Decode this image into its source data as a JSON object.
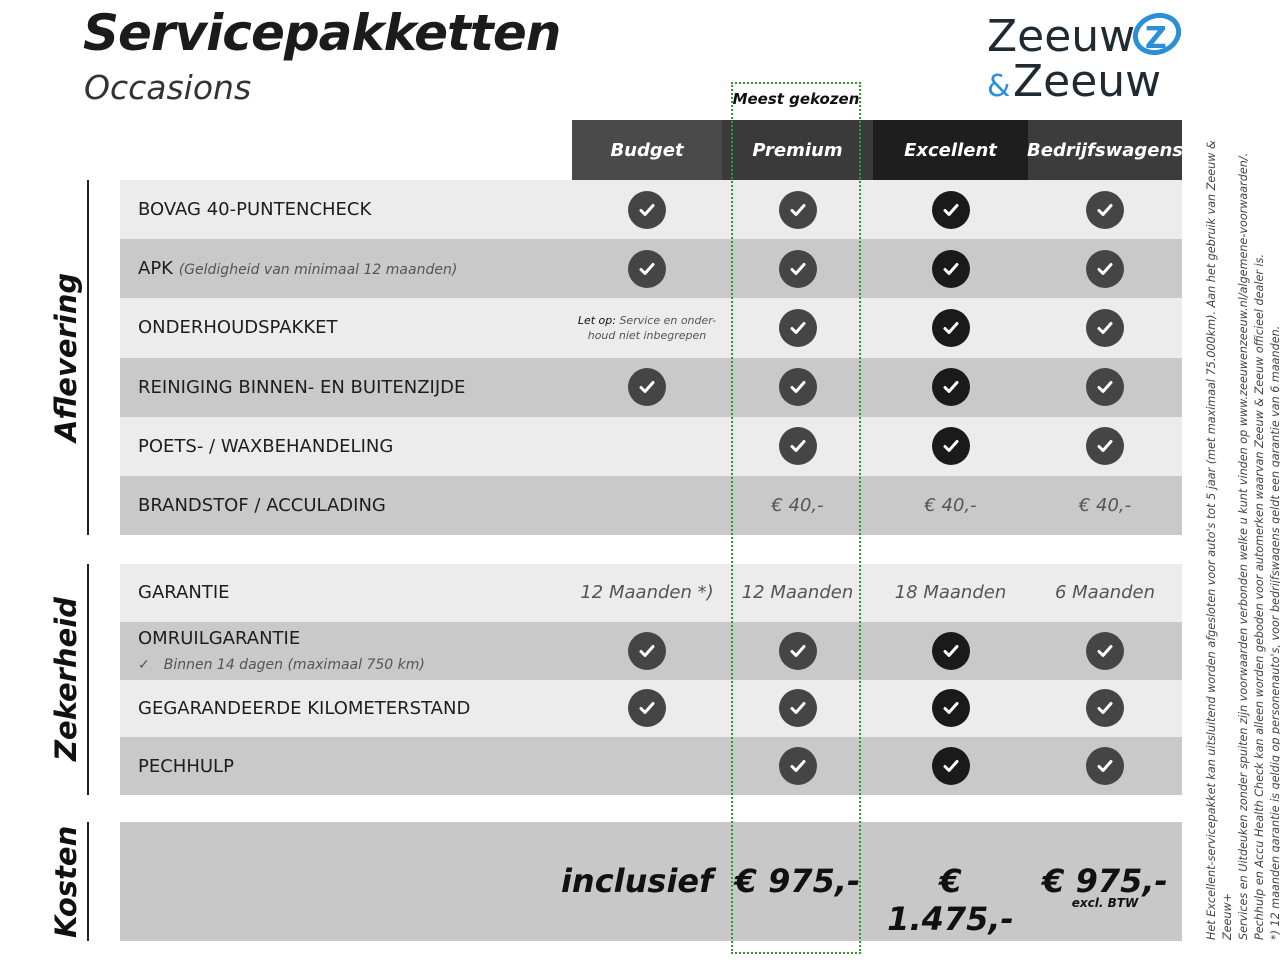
{
  "header": {
    "title": "Servicepakketten",
    "subtitle": "Occasions",
    "logo_text": "Zeeuw & Zeeuw",
    "logo_colors": {
      "text": "#1f2a33",
      "accent": "#2a8fd6"
    }
  },
  "badge": {
    "most_chosen": "Meest gekozen",
    "highlight_color": "#2aa02a"
  },
  "columns": [
    {
      "label": "Budget",
      "color": "#4a4a4a"
    },
    {
      "label": "Premium",
      "color": "#3a3a3a"
    },
    {
      "label": "Excellent",
      "color": "#1e1e1e"
    },
    {
      "label": "Bedrijfswagens",
      "color": "#3c3c3c"
    }
  ],
  "sections": [
    {
      "label": "Aflevering",
      "rows": [
        {
          "label": "BOVAG 40-PUNTENCHECK",
          "cells": [
            "check",
            "check",
            "check",
            "check"
          ]
        },
        {
          "label": "APK",
          "sub": "(Geldigheid van minimaal 12 maanden)",
          "cells": [
            "check",
            "check",
            "check",
            "check"
          ]
        },
        {
          "label": "ONDERHOUDSPAKKET",
          "cells": [
            "note",
            "check",
            "check",
            "check"
          ]
        },
        {
          "label": "REINIGING BINNEN- EN BUITENZIJDE",
          "cells": [
            "check",
            "check",
            "check",
            "check"
          ]
        },
        {
          "label": "POETS- / WAXBEHANDELING",
          "cells": [
            "",
            "check",
            "check",
            "check"
          ]
        },
        {
          "label": "BRANDSTOF / ACCULADING",
          "cells": [
            "",
            "€ 40,-",
            "€ 40,-",
            "€ 40,-"
          ]
        }
      ]
    },
    {
      "label": "Zekerheid",
      "rows": [
        {
          "label": "GARANTIE",
          "cells": [
            "12 Maanden *)",
            "12 Maanden",
            "18 Maanden",
            "6 Maanden"
          ]
        },
        {
          "label": "OMRUILGARANTIE",
          "sub2": "Binnen 14 dagen (maximaal 750 km)",
          "cells": [
            "check",
            "check",
            "check",
            "check"
          ]
        },
        {
          "label": "GEGARANDEERDE KILOMETERSTAND",
          "cells": [
            "check",
            "check",
            "check",
            "check"
          ]
        },
        {
          "label": "PECHHULP",
          "cells": [
            "",
            "check",
            "check",
            "check"
          ]
        }
      ]
    }
  ],
  "onderhoud_note": {
    "bold": "Let op:",
    "text": "Service en onder-",
    "text2": "houd niet inbegrepen"
  },
  "costs": {
    "label": "Kosten",
    "values": [
      "inclusief",
      "€ 975,-",
      "€ 1.475,-",
      "€ 975,-"
    ],
    "bedrijfs_note": "excl. BTW"
  },
  "fine_print": [
    "Het Excellent-servicepakket kan uitsluitend worden afgesloten voor auto's tot 5 jaar (met maximaal 75.000km). Aan het gebruik van Zeeuw & Zeeuw+",
    "Services en Uitdeuken zonder spuiten zijn voorwaarden verbonden welke u kunt vinden op www.zeeuwenzeeuw.nl/algemene-voorwaarden/.",
    "Pechhulp en Accu Health Check kan alleen worden geboden voor automerken waarvan Zeeuw & Zeeuw officieel dealer is.",
    "*) 12 maanden garantie is geldig op personenauto's, voor bedrijfswagens geldt een garantie van 6 maanden."
  ]
}
